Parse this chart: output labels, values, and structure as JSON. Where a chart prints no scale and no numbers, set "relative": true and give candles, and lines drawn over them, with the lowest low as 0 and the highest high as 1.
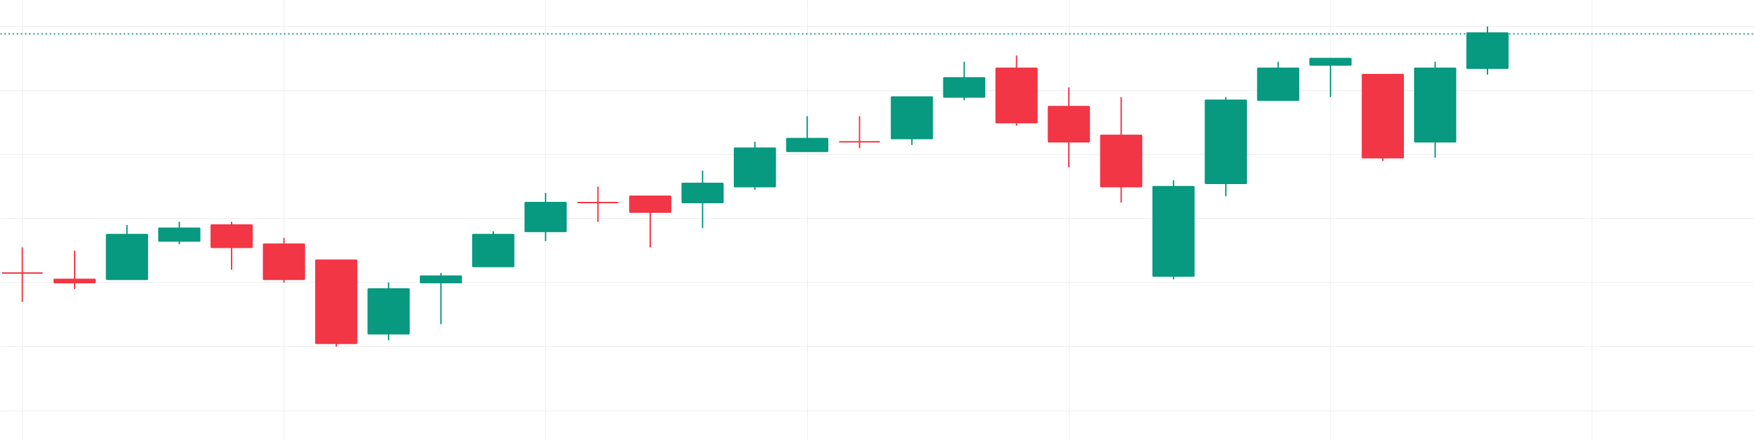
{
  "chart_data": {
    "type": "candlestick",
    "relative": true,
    "grid": true,
    "tick_labels": false,
    "categories": [
      null,
      null,
      null,
      null,
      null,
      null,
      null,
      null,
      null,
      null,
      null,
      null,
      null,
      null,
      null,
      null,
      null,
      null,
      null,
      null,
      null,
      null,
      null,
      null,
      null,
      null,
      null,
      null,
      null
    ],
    "ohlc": [
      [
        0.23,
        0.31,
        0.14,
        0.23
      ],
      [
        0.21,
        0.3,
        0.18,
        0.2
      ],
      [
        0.21,
        0.38,
        0.21,
        0.35
      ],
      [
        0.33,
        0.39,
        0.32,
        0.37
      ],
      [
        0.38,
        0.39,
        0.24,
        0.31
      ],
      [
        0.32,
        0.34,
        0.2,
        0.21
      ],
      [
        0.27,
        0.27,
        0,
        0.01
      ],
      [
        0.04,
        0.2,
        0.02,
        0.18
      ],
      [
        0.2,
        0.23,
        0.07,
        0.22
      ],
      [
        0.25,
        0.36,
        0.25,
        0.35
      ],
      [
        0.36,
        0.48,
        0.33,
        0.45
      ],
      [
        0.45,
        0.5,
        0.39,
        0.45
      ],
      [
        0.47,
        0.47,
        0.31,
        0.42
      ],
      [
        0.45,
        0.55,
        0.37,
        0.51
      ],
      [
        0.5,
        0.64,
        0.49,
        0.62
      ],
      [
        0.61,
        0.72,
        0.61,
        0.65
      ],
      [
        0.64,
        0.72,
        0.62,
        0.64
      ],
      [
        0.65,
        0.78,
        0.63,
        0.78
      ],
      [
        0.78,
        0.89,
        0.77,
        0.84
      ],
      [
        0.87,
        0.91,
        0.69,
        0.7
      ],
      [
        0.75,
        0.81,
        0.56,
        0.64
      ],
      [
        0.66,
        0.78,
        0.45,
        0.5
      ],
      [
        0.22,
        0.52,
        0.21,
        0.5
      ],
      [
        0.51,
        0.78,
        0.47,
        0.77
      ],
      [
        0.77,
        0.89,
        0.77,
        0.87
      ],
      [
        0.88,
        0.9,
        0.78,
        0.9
      ],
      [
        0.85,
        0.85,
        0.58,
        0.59
      ],
      [
        0.64,
        0.89,
        0.59,
        0.87
      ],
      [
        0.87,
        1,
        0.85,
        0.98
      ]
    ],
    "colors": [
      "#f23645",
      "#f23645",
      "#089981",
      "#089981",
      "#f23645",
      "#f23645",
      "#f23645",
      "#089981",
      "#089981",
      "#089981",
      "#089981",
      "#f23645",
      "#f23645",
      "#089981",
      "#089981",
      "#089981",
      "#f23645",
      "#089981",
      "#089981",
      "#f23645",
      "#f23645",
      "#f23645",
      "#089981",
      "#089981",
      "#089981",
      "#089981",
      "#f23645",
      "#089981",
      "#089981"
    ],
    "ref_lines": [
      {
        "axis": "y",
        "value": 0.977,
        "color": "#089981",
        "line_style": "dotted"
      }
    ]
  }
}
